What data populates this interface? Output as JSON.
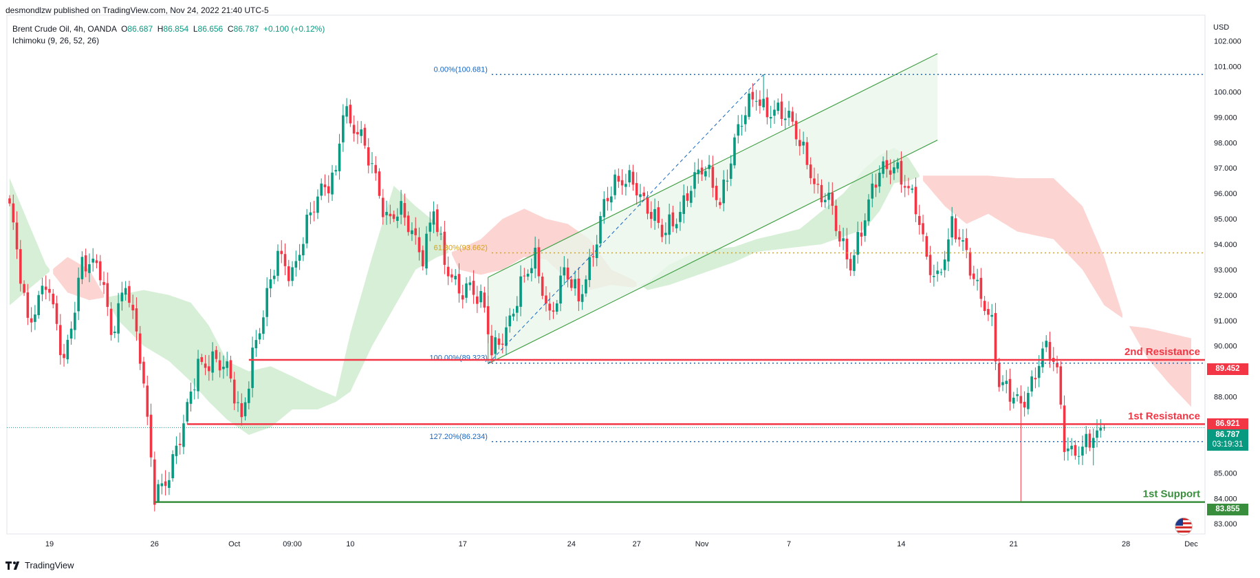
{
  "header": {
    "published": "desmondlzw published on TradingView.com, Nov 24, 2022 21:40 UTC-5",
    "symbol": "Brent Crude Oil, 4h, OANDA",
    "ohlc": {
      "o_label": "O",
      "o": "86.687",
      "h_label": "H",
      "h": "86.854",
      "l_label": "L",
      "l": "86.656",
      "c_label": "C",
      "c": "86.787",
      "change": "+0.100 (+0.12%)"
    },
    "indicator": "Ichimoku (9, 26, 52, 26)",
    "currency": "USD"
  },
  "footer": {
    "brand": "TradingView"
  },
  "colors": {
    "up": "#089981",
    "down": "#f23645",
    "resistance": "#f23645",
    "support": "#388e3c",
    "fib": "#1565c0",
    "fib618": "#d4a017",
    "kumo_bull": "#d6efd6",
    "kumo_bear": "#fcd5d3"
  },
  "tags": {
    "resistance2": "89.452",
    "resistance1": "86.921",
    "last_price": "86.787",
    "countdown": "03:19:31",
    "support1": "83.855"
  },
  "chart_data": {
    "type": "candlestick",
    "y_axis": {
      "ticks": [
        "102.000",
        "101.000",
        "100.000",
        "99.000",
        "98.000",
        "97.000",
        "96.000",
        "95.000",
        "94.000",
        "93.000",
        "92.000",
        "91.000",
        "90.000",
        "89.000",
        "88.000",
        "87.000",
        "86.000",
        "85.000",
        "84.000",
        "83.000"
      ],
      "range": [
        82.6,
        102.8
      ],
      "side": "right"
    },
    "x_axis": {
      "ticks": [
        "19",
        "26",
        "Oct",
        "09:00",
        "10",
        "17",
        "24",
        "27",
        "Nov",
        "7",
        "14",
        "21",
        "28",
        "Dec"
      ],
      "tick_x_index": [
        11,
        40,
        62,
        78,
        94,
        125,
        155,
        173,
        191,
        215,
        246,
        277,
        308,
        326
      ]
    },
    "levels": [
      {
        "name": "2nd Resistance",
        "value": 89.452
      },
      {
        "name": "1st Resistance",
        "value": 86.921
      },
      {
        "name": "1st Support",
        "value": 83.855
      }
    ],
    "fib_levels": [
      {
        "label": "0.00%(100.681)",
        "value": 100.681
      },
      {
        "label": "61.80%(93.662)",
        "value": 93.662
      },
      {
        "label": "100.00%(89.323)",
        "value": 89.323
      },
      {
        "label": "127.20%(86.234)",
        "value": 86.234
      }
    ],
    "channel": {
      "lower_start": [
        132,
        89.3
      ],
      "lower_end": [
        256,
        98.1
      ],
      "width": 3.4
    },
    "fib_anchor_line": {
      "from": [
        132,
        89.3
      ],
      "to": [
        208,
        100.68
      ]
    },
    "anchors": [
      {
        "i": 0,
        "v": 95.3
      },
      {
        "i": 5,
        "v": 91.0
      },
      {
        "i": 10,
        "v": 92.6
      },
      {
        "i": 15,
        "v": 89.2
      },
      {
        "i": 20,
        "v": 93.5
      },
      {
        "i": 25,
        "v": 92.8
      },
      {
        "i": 28,
        "v": 90.5
      },
      {
        "i": 32,
        "v": 92.7
      },
      {
        "i": 36,
        "v": 89.5
      },
      {
        "i": 40,
        "v": 84.2
      },
      {
        "i": 44,
        "v": 85.1
      },
      {
        "i": 48,
        "v": 86.7
      },
      {
        "i": 52,
        "v": 89.3
      },
      {
        "i": 56,
        "v": 89.6
      },
      {
        "i": 60,
        "v": 88.9
      },
      {
        "i": 64,
        "v": 87.1
      },
      {
        "i": 67,
        "v": 89.8
      },
      {
        "i": 70,
        "v": 91.2
      },
      {
        "i": 74,
        "v": 93.5
      },
      {
        "i": 78,
        "v": 93.0
      },
      {
        "i": 82,
        "v": 94.7
      },
      {
        "i": 86,
        "v": 96.0
      },
      {
        "i": 90,
        "v": 97.0
      },
      {
        "i": 92,
        "v": 99.5
      },
      {
        "i": 94,
        "v": 98.6
      },
      {
        "i": 98,
        "v": 97.8
      },
      {
        "i": 101,
        "v": 96.8
      },
      {
        "i": 104,
        "v": 95.0
      },
      {
        "i": 108,
        "v": 95.1
      },
      {
        "i": 111,
        "v": 94.5
      },
      {
        "i": 114,
        "v": 93.7
      },
      {
        "i": 117,
        "v": 95.4
      },
      {
        "i": 120,
        "v": 93.0
      },
      {
        "i": 124,
        "v": 92.3
      },
      {
        "i": 127,
        "v": 92.5
      },
      {
        "i": 131,
        "v": 91.3
      },
      {
        "i": 133,
        "v": 89.6
      },
      {
        "i": 137,
        "v": 90.8
      },
      {
        "i": 141,
        "v": 92.3
      },
      {
        "i": 145,
        "v": 93.3
      },
      {
        "i": 149,
        "v": 91.3
      },
      {
        "i": 153,
        "v": 92.9
      },
      {
        "i": 157,
        "v": 91.7
      },
      {
        "i": 160,
        "v": 93.3
      },
      {
        "i": 164,
        "v": 95.6
      },
      {
        "i": 168,
        "v": 96.3
      },
      {
        "i": 172,
        "v": 96.7
      },
      {
        "i": 176,
        "v": 95.4
      },
      {
        "i": 180,
        "v": 94.3
      },
      {
        "i": 184,
        "v": 95.2
      },
      {
        "i": 188,
        "v": 96.3
      },
      {
        "i": 192,
        "v": 96.9
      },
      {
        "i": 196,
        "v": 95.8
      },
      {
        "i": 200,
        "v": 98.0
      },
      {
        "i": 204,
        "v": 99.4
      },
      {
        "i": 206,
        "v": 99.9
      },
      {
        "i": 208,
        "v": 99.5
      },
      {
        "i": 212,
        "v": 99.2
      },
      {
        "i": 216,
        "v": 98.6
      },
      {
        "i": 220,
        "v": 97.5
      },
      {
        "i": 223,
        "v": 96.0
      },
      {
        "i": 226,
        "v": 95.6
      },
      {
        "i": 229,
        "v": 94.2
      },
      {
        "i": 232,
        "v": 93.4
      },
      {
        "i": 236,
        "v": 95.0
      },
      {
        "i": 240,
        "v": 96.8
      },
      {
        "i": 244,
        "v": 97.3
      },
      {
        "i": 247,
        "v": 96.4
      },
      {
        "i": 250,
        "v": 95.3
      },
      {
        "i": 253,
        "v": 93.4
      },
      {
        "i": 256,
        "v": 92.8
      },
      {
        "i": 260,
        "v": 94.6
      },
      {
        "i": 263,
        "v": 93.8
      },
      {
        "i": 266,
        "v": 92.8
      },
      {
        "i": 269,
        "v": 91.8
      },
      {
        "i": 271,
        "v": 90.8
      },
      {
        "i": 273,
        "v": 88.3
      },
      {
        "i": 276,
        "v": 88.1
      },
      {
        "i": 279,
        "v": 87.9
      },
      {
        "i": 282,
        "v": 88.5
      },
      {
        "i": 285,
        "v": 89.6
      },
      {
        "i": 287,
        "v": 89.7
      },
      {
        "i": 289,
        "v": 89.0
      },
      {
        "i": 291,
        "v": 86.4
      },
      {
        "i": 293,
        "v": 85.9
      },
      {
        "i": 296,
        "v": 85.8
      },
      {
        "i": 299,
        "v": 86.3
      },
      {
        "i": 302,
        "v": 86.79
      }
    ],
    "kumo": [
      {
        "i": 0,
        "a": 96.6,
        "b": 91.6
      },
      {
        "i": 10,
        "a": 93.2,
        "b": 92.8
      },
      {
        "i": 16,
        "a": 92.1,
        "b": 93.5
      },
      {
        "i": 22,
        "a": 91.8,
        "b": 93.0
      },
      {
        "i": 30,
        "a": 92.0,
        "b": 91.0
      },
      {
        "i": 37,
        "a": 92.2,
        "b": 90.0
      },
      {
        "i": 44,
        "a": 92.0,
        "b": 89.4
      },
      {
        "i": 50,
        "a": 91.7,
        "b": 88.6
      },
      {
        "i": 55,
        "a": 90.8,
        "b": 87.8
      },
      {
        "i": 60,
        "a": 89.4,
        "b": 87.1
      },
      {
        "i": 66,
        "a": 89.0,
        "b": 86.5
      },
      {
        "i": 72,
        "a": 89.2,
        "b": 86.8
      },
      {
        "i": 78,
        "a": 88.8,
        "b": 87.5
      },
      {
        "i": 85,
        "a": 88.3,
        "b": 87.5
      },
      {
        "i": 90,
        "a": 88.0,
        "b": 87.8
      },
      {
        "i": 94,
        "a": 90.5,
        "b": 88.2
      },
      {
        "i": 100,
        "a": 93.5,
        "b": 90.0
      },
      {
        "i": 106,
        "a": 96.3,
        "b": 91.5
      },
      {
        "i": 112,
        "a": 95.5,
        "b": 93.0
      },
      {
        "i": 118,
        "a": 94.8,
        "b": 93.5
      },
      {
        "i": 124,
        "a": 93.0,
        "b": 93.8
      },
      {
        "i": 130,
        "a": 92.8,
        "b": 94.2
      },
      {
        "i": 136,
        "a": 93.0,
        "b": 95.0
      },
      {
        "i": 142,
        "a": 93.5,
        "b": 95.4
      },
      {
        "i": 148,
        "a": 93.4,
        "b": 95.0
      },
      {
        "i": 154,
        "a": 92.6,
        "b": 94.8
      },
      {
        "i": 160,
        "a": 92.2,
        "b": 94.2
      },
      {
        "i": 166,
        "a": 92.4,
        "b": 93.0
      },
      {
        "i": 172,
        "a": 92.3,
        "b": 92.6
      },
      {
        "i": 176,
        "a": 92.5,
        "b": 92.2
      },
      {
        "i": 182,
        "a": 93.2,
        "b": 92.4
      },
      {
        "i": 188,
        "a": 93.6,
        "b": 92.7
      },
      {
        "i": 194,
        "a": 93.8,
        "b": 93.0
      },
      {
        "i": 200,
        "a": 93.9,
        "b": 93.3
      },
      {
        "i": 206,
        "a": 94.2,
        "b": 93.7
      },
      {
        "i": 212,
        "a": 94.4,
        "b": 93.8
      },
      {
        "i": 218,
        "a": 94.6,
        "b": 93.9
      },
      {
        "i": 224,
        "a": 95.3,
        "b": 94.0
      },
      {
        "i": 230,
        "a": 96.0,
        "b": 94.3
      },
      {
        "i": 236,
        "a": 97.0,
        "b": 94.6
      },
      {
        "i": 240,
        "a": 97.5,
        "b": 95.3
      },
      {
        "i": 244,
        "a": 97.8,
        "b": 96.4
      },
      {
        "i": 248,
        "a": 97.4,
        "b": 96.5
      },
      {
        "i": 252,
        "a": 96.5,
        "b": 96.7
      },
      {
        "i": 258,
        "a": 95.5,
        "b": 96.7
      },
      {
        "i": 264,
        "a": 94.8,
        "b": 96.7
      },
      {
        "i": 270,
        "a": 95.2,
        "b": 96.7
      },
      {
        "i": 278,
        "a": 94.5,
        "b": 96.6
      },
      {
        "i": 288,
        "a": 94.2,
        "b": 96.6
      },
      {
        "i": 296,
        "a": 93.0,
        "b": 95.5
      },
      {
        "i": 302,
        "a": 91.6,
        "b": 93.5
      },
      {
        "i": 308,
        "a": 91.0,
        "b": 90.8
      },
      {
        "i": 314,
        "a": 89.5,
        "b": 90.7
      },
      {
        "i": 320,
        "a": 88.5,
        "b": 90.5
      },
      {
        "i": 326,
        "a": 87.6,
        "b": 90.3
      }
    ]
  }
}
